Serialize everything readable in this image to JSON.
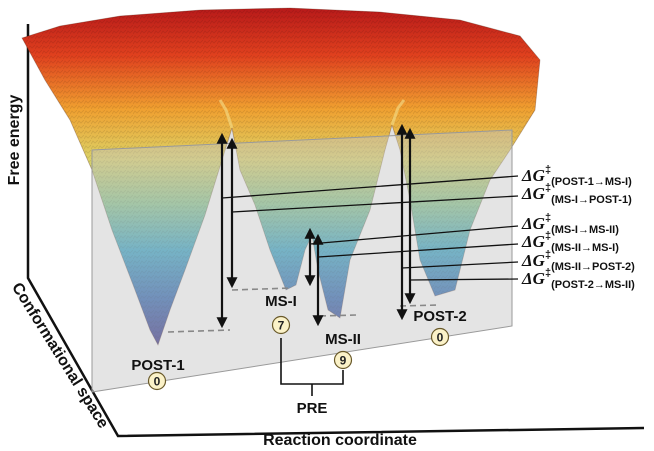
{
  "axes": {
    "y_label": "Free energy",
    "z_label": "Conformational space",
    "x_label": "Reaction coordinate"
  },
  "states": {
    "post1": {
      "name": "POST-1",
      "value": "0"
    },
    "ms1": {
      "name": "MS-I",
      "value": "7"
    },
    "ms2": {
      "name": "MS-II",
      "value": "9"
    },
    "post2": {
      "name": "POST-2",
      "value": "0"
    },
    "pre": {
      "name": "PRE"
    }
  },
  "barriers": [
    {
      "symbol": "ΔG",
      "mark": "‡",
      "sub": "(POST-1→MS-I)"
    },
    {
      "symbol": "ΔG",
      "mark": "‡",
      "sub": "(MS-I→POST-1)"
    },
    {
      "symbol": "ΔG",
      "mark": "‡",
      "sub": "(MS-I→MS-II)"
    },
    {
      "symbol": "ΔG",
      "mark": "‡",
      "sub": "(MS-II→MS-I)"
    },
    {
      "symbol": "ΔG",
      "mark": "‡",
      "sub": "(MS-II→POST-2)"
    },
    {
      "symbol": "ΔG",
      "mark": "‡",
      "sub": "(POST-2→MS-II)"
    }
  ],
  "colors": {
    "high_energy": "#d8281e",
    "mid_energy": "#e8c84a",
    "low_energy": "#3aa6c9",
    "well_bottom": "#3c3a8e",
    "plane": "#c8c8c8",
    "badge_fill": "#fbf2c8"
  }
}
